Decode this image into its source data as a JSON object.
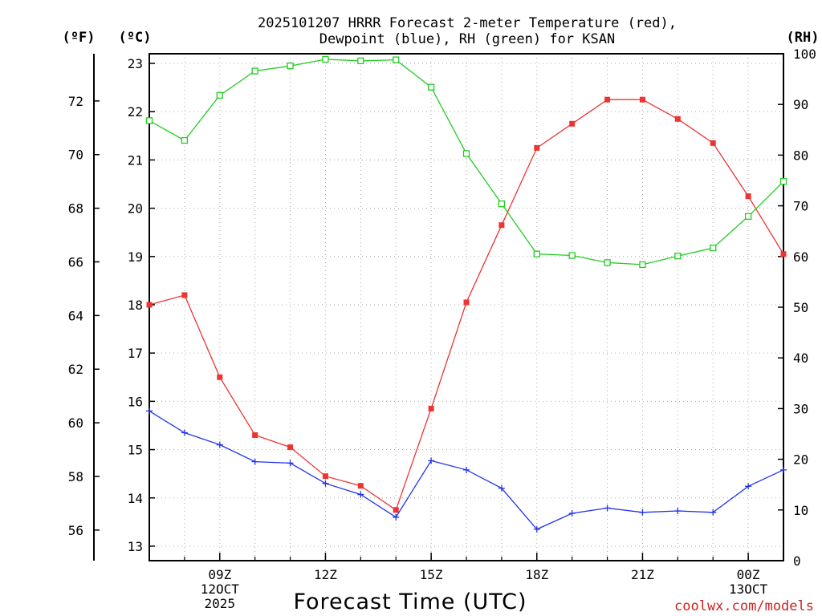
{
  "chart_data": {
    "type": "line",
    "title_line1": "2025101207 HRRR Forecast 2-meter Temperature (red),",
    "title_line2": "Dewpoint (blue), RH (green) for KSAN",
    "xlabel": "Forecast Time (UTC)",
    "credit": "coolwx.com/models",
    "units": {
      "fahrenheit": "(ºF)",
      "celsius": "(ºC)",
      "rh": "(RH)"
    },
    "x_hours": [
      7,
      8,
      9,
      10,
      11,
      12,
      13,
      14,
      15,
      16,
      17,
      18,
      19,
      20,
      21,
      22,
      23,
      24,
      25
    ],
    "xlim": [
      7,
      25
    ],
    "celsius_axis": {
      "range": [
        12.7,
        23.2
      ],
      "ticks": [
        "13",
        "14",
        "15",
        "16",
        "17",
        "18",
        "19",
        "20",
        "21",
        "22",
        "23"
      ]
    },
    "fahrenheit_axis": {
      "ticks": [
        "56",
        "58",
        "60",
        "62",
        "64",
        "66",
        "68",
        "70",
        "72"
      ]
    },
    "rh_axis": {
      "range": [
        0,
        100
      ],
      "ticks": [
        "0",
        "10",
        "20",
        "30",
        "40",
        "50",
        "60",
        "70",
        "80",
        "90",
        "100"
      ]
    },
    "x_ticks": [
      {
        "hour": 9,
        "lines": [
          "09Z",
          "12OCT",
          "2025"
        ]
      },
      {
        "hour": 12,
        "lines": [
          "12Z"
        ]
      },
      {
        "hour": 15,
        "lines": [
          "15Z"
        ]
      },
      {
        "hour": 18,
        "lines": [
          "18Z"
        ]
      },
      {
        "hour": 21,
        "lines": [
          "21Z"
        ]
      },
      {
        "hour": 24,
        "lines": [
          "00Z",
          "13OCT"
        ]
      }
    ],
    "series": [
      {
        "name": "Temperature",
        "unit": "C",
        "axis": "celsius",
        "color": "#ee3333",
        "marker": "filled-square",
        "values": [
          18.0,
          18.2,
          16.5,
          15.3,
          15.05,
          14.45,
          14.25,
          13.75,
          15.85,
          18.05,
          19.65,
          21.25,
          21.75,
          22.25,
          22.25,
          21.85,
          21.35,
          20.25,
          19.05
        ]
      },
      {
        "name": "Dewpoint",
        "unit": "C",
        "axis": "celsius",
        "color": "#2233ee",
        "marker": "plus",
        "values": [
          15.8,
          15.35,
          15.1,
          14.75,
          14.72,
          14.3,
          14.07,
          13.6,
          14.77,
          14.58,
          14.2,
          13.35,
          13.68,
          13.79,
          13.7,
          13.73,
          13.7,
          14.24,
          14.58
        ]
      },
      {
        "name": "RH",
        "unit": "%",
        "axis": "rh",
        "color": "#22cc22",
        "marker": "open-square",
        "values": [
          86.8,
          82.9,
          91.8,
          96.6,
          97.6,
          98.9,
          98.6,
          98.8,
          93.4,
          80.3,
          70.4,
          60.5,
          60.2,
          58.8,
          58.4,
          60.1,
          61.7,
          67.9,
          74.8
        ]
      }
    ]
  }
}
